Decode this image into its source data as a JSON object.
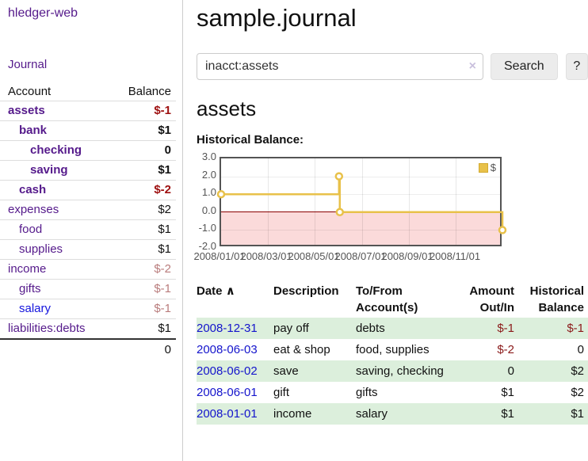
{
  "app": {
    "brand": "hledger-web",
    "nav": {
      "journal": "Journal"
    }
  },
  "sidebar": {
    "header": {
      "account": "Account",
      "balance": "Balance"
    },
    "accounts": [
      {
        "name": "assets",
        "balance": "$-1"
      },
      {
        "name": "bank",
        "balance": "$1"
      },
      {
        "name": "checking",
        "balance": "0"
      },
      {
        "name": "saving",
        "balance": "$1"
      },
      {
        "name": "cash",
        "balance": "$-2"
      },
      {
        "name": "expenses",
        "balance": "$2"
      },
      {
        "name": "food",
        "balance": "$1"
      },
      {
        "name": "supplies",
        "balance": "$1"
      },
      {
        "name": "income",
        "balance": "$-2"
      },
      {
        "name": "gifts",
        "balance": "$-1"
      },
      {
        "name": "salary",
        "balance": "$-1"
      },
      {
        "name": "liabilities:debts",
        "balance": "$1"
      }
    ],
    "total": "0"
  },
  "main": {
    "title": "sample.journal",
    "search": {
      "value": "inacct:assets",
      "clear_icon": "×",
      "button_label": "Search",
      "help_label": "?"
    },
    "account_heading": "assets",
    "chart_label": "Historical Balance:"
  },
  "chart_data": {
    "type": "line",
    "title": "Historical Balance",
    "step": true,
    "series": [
      {
        "name": "$",
        "color": "#e8c14a",
        "points": [
          [
            "2008-01-01",
            1
          ],
          [
            "2008-06-02",
            2
          ],
          [
            "2008-06-03",
            0
          ],
          [
            "2008-12-31",
            -1
          ]
        ]
      }
    ],
    "x_range": [
      "2008-01-01",
      "2009-01-01"
    ],
    "ylim": [
      -2,
      3
    ],
    "y_ticks": [
      "3.0",
      "2.0",
      "1.0",
      "0.0",
      "-1.0",
      "-2.0"
    ],
    "x_ticks": [
      "2008/01/01",
      "2008/03/01",
      "2008/05/01",
      "2008/07/01",
      "2008/09/01",
      "2008/11/01"
    ],
    "legend": {
      "position": "top-right",
      "label": "$"
    },
    "grid": true,
    "negative_region_color": "#fbdada",
    "zero_line_color": "#8b0000"
  },
  "register": {
    "headers": {
      "date": "Date",
      "sort_icon": "∧",
      "description": "Description",
      "accounts": "To/From Account(s)",
      "amount": "Amount Out/In",
      "balance": "Historical Balance"
    },
    "rows": [
      {
        "date": "2008-12-31",
        "description": "pay off",
        "accounts": "debts",
        "amount": "$-1",
        "balance": "$-1"
      },
      {
        "date": "2008-06-03",
        "description": "eat & shop",
        "accounts": "food, supplies",
        "amount": "$-2",
        "balance": "0"
      },
      {
        "date": "2008-06-02",
        "description": "save",
        "accounts": "saving, checking",
        "amount": "0",
        "balance": "$2"
      },
      {
        "date": "2008-06-01",
        "description": "gift",
        "accounts": "gifts",
        "amount": "$1",
        "balance": "$2"
      },
      {
        "date": "2008-01-01",
        "description": "income",
        "accounts": "salary",
        "amount": "$1",
        "balance": "$1"
      }
    ]
  }
}
